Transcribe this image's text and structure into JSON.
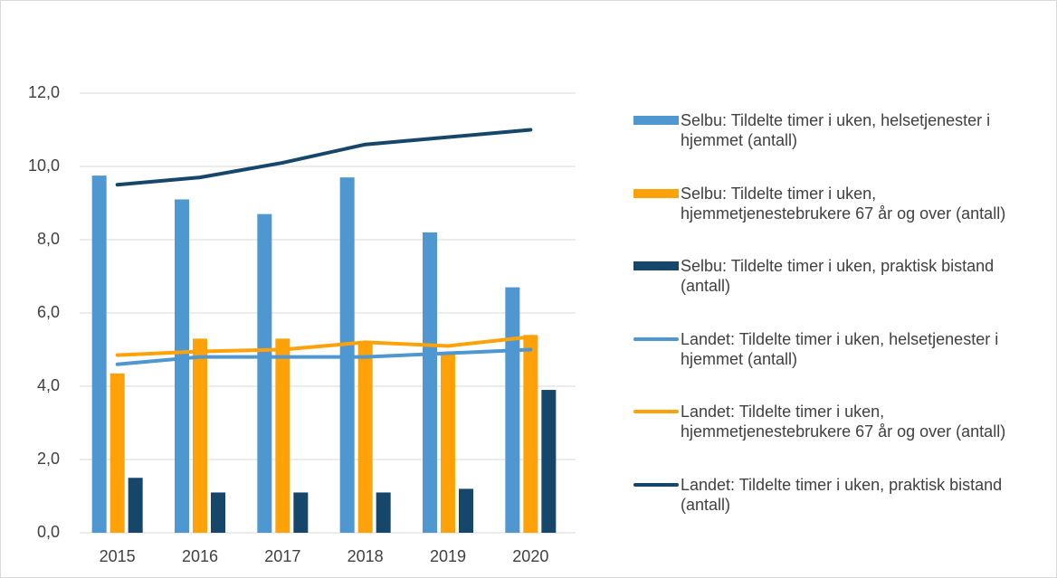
{
  "chart_data": {
    "type": "bar",
    "categories": [
      "2015",
      "2016",
      "2017",
      "2018",
      "2019",
      "2020"
    ],
    "ylim": [
      0,
      12
    ],
    "yticks": [
      {
        "value": 0,
        "label": "0,0"
      },
      {
        "value": 2,
        "label": "2,0"
      },
      {
        "value": 4,
        "label": "4,0"
      },
      {
        "value": 6,
        "label": "6,0"
      },
      {
        "value": 8,
        "label": "8,0"
      },
      {
        "value": 10,
        "label": "10,0"
      },
      {
        "value": 12,
        "label": "12,0"
      }
    ],
    "grid": true,
    "legend": "right",
    "series": [
      {
        "name": "Selbu: Tildelte timer i uken, helsetjenester i hjemmet (antall)",
        "type": "bar",
        "color": "#4f97d0",
        "values": [
          9.75,
          9.1,
          8.7,
          9.7,
          8.2,
          6.7
        ]
      },
      {
        "name": "Selbu: Tildelte timer i uken, hjemmetjenestebrukere 67 år og over (antall)",
        "type": "bar",
        "color": "#ffa20a",
        "values": [
          4.35,
          5.3,
          5.3,
          5.2,
          4.9,
          5.4
        ]
      },
      {
        "name": "Selbu: Tildelte timer i uken, praktisk bistand (antall)",
        "type": "bar",
        "color": "#17466b",
        "values": [
          1.5,
          1.1,
          1.1,
          1.1,
          1.2,
          3.9
        ]
      },
      {
        "name": "Landet: Tildelte timer i uken, helsetjenester i hjemmet (antall)",
        "type": "line",
        "color": "#4f97d0",
        "values": [
          4.6,
          4.8,
          4.8,
          4.8,
          4.9,
          5.0
        ]
      },
      {
        "name": "Landet: Tildelte timer i uken, hjemmetjenestebrukere 67 år og over (antall)",
        "type": "line",
        "color": "#ffa20a",
        "values": [
          4.85,
          4.95,
          5.0,
          5.2,
          5.1,
          5.35
        ]
      },
      {
        "name": "Landet: Tildelte timer i uken, praktisk bistand (antall)",
        "type": "line",
        "color": "#17466b",
        "values": [
          9.5,
          9.7,
          10.1,
          10.6,
          10.8,
          11.0
        ]
      }
    ]
  }
}
